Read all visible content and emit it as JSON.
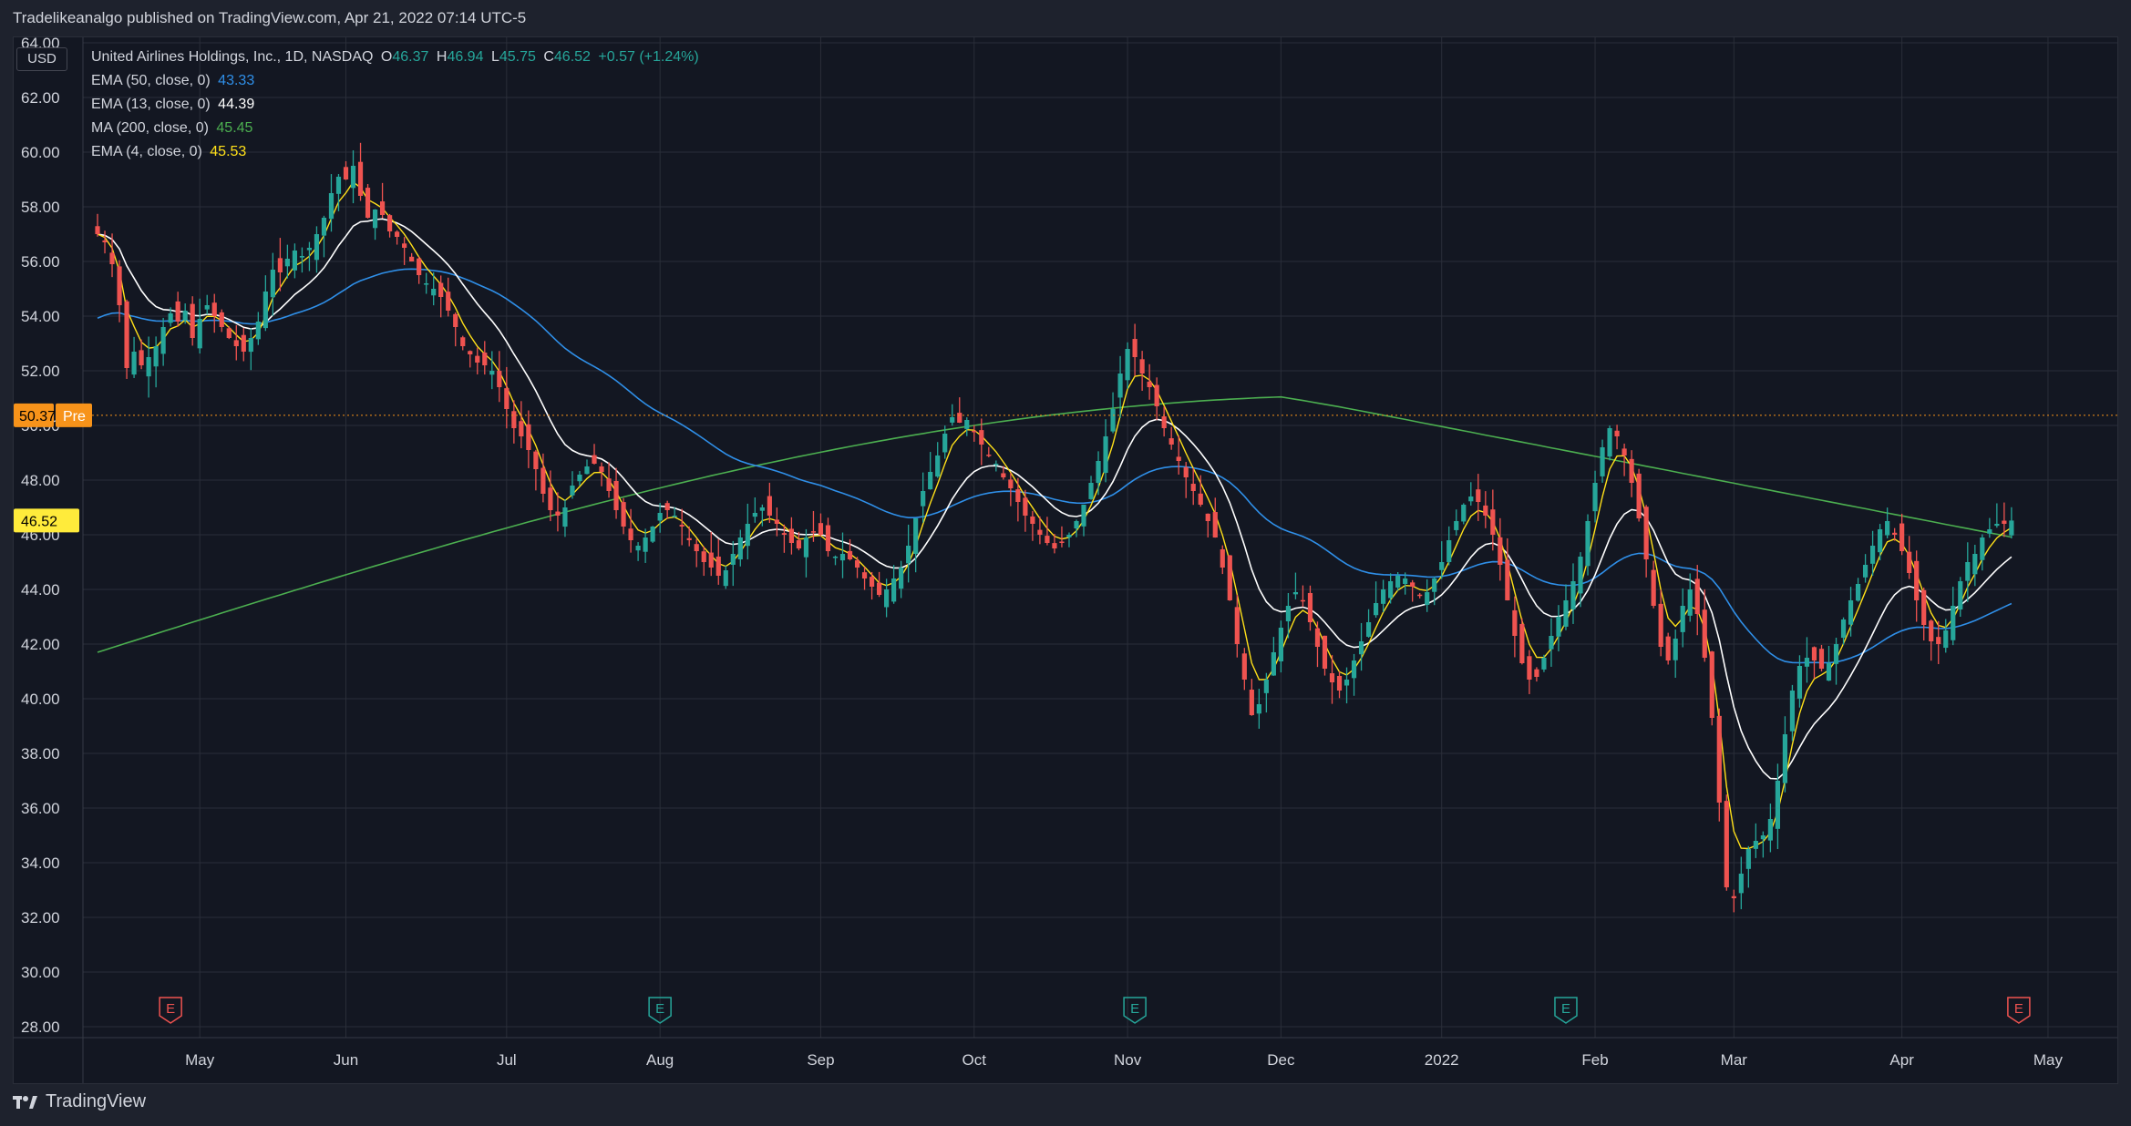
{
  "header": {
    "text": "Tradelikeanalgo published on TradingView.com, Apr 21, 2022 07:14 UTC-5"
  },
  "footer": {
    "logo_text": "TradingView"
  },
  "currency": "USD",
  "legend": {
    "symbol": "United Airlines Holdings, Inc., 1D, NASDAQ",
    "o_label": "O",
    "o_value": "46.37",
    "h_label": "H",
    "h_value": "46.94",
    "l_label": "L",
    "l_value": "45.75",
    "c_label": "C",
    "c_value": "46.52",
    "change": "+0.57 (+1.24%)",
    "indicators": [
      {
        "label": "EMA (50, close, 0)",
        "value": "43.33",
        "color": "#2f8fe8"
      },
      {
        "label": "EMA (13, close, 0)",
        "value": "44.39",
        "color": "#ffffff"
      },
      {
        "label": "MA (200, close, 0)",
        "value": "45.45",
        "color": "#4caf50"
      },
      {
        "label": "EMA (4, close, 0)",
        "value": "45.53",
        "color": "#ffe019"
      }
    ]
  },
  "badges": {
    "pre_price": "50.37",
    "pre_label": "Pre",
    "last_price": "46.52"
  },
  "colors": {
    "up": "#26a69a",
    "down": "#ef5350",
    "grid": "#2a2e39",
    "ema50": "#2f8fe8",
    "ema13": "#ffffff",
    "ma200": "#4caf50",
    "ema4": "#ffe019",
    "pre_badge": "#f7931a",
    "last_badge": "#ffeb3b"
  },
  "earnings_markers": [
    {
      "label": "E",
      "date_index": 10,
      "type": "down"
    },
    {
      "label": "E",
      "date_index": 77,
      "type": "up"
    },
    {
      "label": "E",
      "date_index": 142,
      "type": "up"
    },
    {
      "label": "E",
      "date_index": 201,
      "type": "up"
    },
    {
      "label": "E",
      "date_index": 263,
      "type": "down"
    }
  ],
  "chart_data": {
    "type": "candlestick",
    "y_ticks": [
      "64.00",
      "62.00",
      "60.00",
      "58.00",
      "56.00",
      "54.00",
      "52.00",
      "50.00",
      "48.00",
      "46.00",
      "44.00",
      "42.00",
      "40.00",
      "38.00",
      "36.00",
      "34.00",
      "32.00",
      "30.00",
      "28.00"
    ],
    "x_ticks": [
      {
        "label": "May",
        "index": 14
      },
      {
        "label": "Jun",
        "index": 34
      },
      {
        "label": "Jul",
        "index": 56
      },
      {
        "label": "Aug",
        "index": 77
      },
      {
        "label": "Sep",
        "index": 99
      },
      {
        "label": "Oct",
        "index": 120
      },
      {
        "label": "Nov",
        "index": 141
      },
      {
        "label": "Dec",
        "index": 162
      },
      {
        "label": "2022",
        "index": 184
      },
      {
        "label": "Feb",
        "index": 205
      },
      {
        "label": "Mar",
        "index": 224
      },
      {
        "label": "Apr",
        "index": 247
      },
      {
        "label": "May",
        "index": 267
      }
    ],
    "ylim": [
      27.6,
      64.2
    ],
    "x_count": 271,
    "closes": [
      57.0,
      56.7,
      55.9,
      54.4,
      52.1,
      52.7,
      52.2,
      52.5,
      52.9,
      53.6,
      54.1,
      53.8,
      54.2,
      53.2,
      53.9,
      54.4,
      54.0,
      53.6,
      53.2,
      52.9,
      52.7,
      53.2,
      53.8,
      54.9,
      55.7,
      55.6,
      56.1,
      56.4,
      56.2,
      56.5,
      57.0,
      57.6,
      58.5,
      59.1,
      59.0,
      59.5,
      58.4,
      57.6,
      57.9,
      57.7,
      57.1,
      56.9,
      56.5,
      56.0,
      55.5,
      55.2,
      55.0,
      54.7,
      54.2,
      53.6,
      52.9,
      52.6,
      52.3,
      52.2,
      52.0,
      51.4,
      50.6,
      49.9,
      49.6,
      49.1,
      48.4,
      47.5,
      46.9,
      46.7,
      47.0,
      47.8,
      48.2,
      48.5,
      48.6,
      48.3,
      47.6,
      46.9,
      46.3,
      45.8,
      45.6,
      45.9,
      46.3,
      46.8,
      46.9,
      46.7,
      46.3,
      45.8,
      45.4,
      45.0,
      44.8,
      44.5,
      44.7,
      45.3,
      45.9,
      46.4,
      46.8,
      47.0,
      46.7,
      46.4,
      46.0,
      45.7,
      45.5,
      45.9,
      46.1,
      46.0,
      45.4,
      45.2,
      45.3,
      45.1,
      44.8,
      44.4,
      44.1,
      43.8,
      44.0,
      44.4,
      44.8,
      45.6,
      46.6,
      47.6,
      48.3,
      48.9,
      49.7,
      50.3,
      50.1,
      50.2,
      49.8,
      49.3,
      48.9,
      48.6,
      48.1,
      47.7,
      47.2,
      46.7,
      46.4,
      46.0,
      45.7,
      45.5,
      45.7,
      46.0,
      46.5,
      47.1,
      47.9,
      48.7,
      49.6,
      50.6,
      51.9,
      52.8,
      52.5,
      51.9,
      51.4,
      50.7,
      49.9,
      49.3,
      48.7,
      48.1,
      47.6,
      47.1,
      46.5,
      45.9,
      44.8,
      43.6,
      42.0,
      40.7,
      39.4,
      39.8,
      40.7,
      41.7,
      42.6,
      43.4,
      43.9,
      43.6,
      42.8,
      41.9,
      41.1,
      40.6,
      40.3,
      40.7,
      41.4,
      42.1,
      42.8,
      43.5,
      44.0,
      44.3,
      44.5,
      44.4,
      44.1,
      43.8,
      43.9,
      44.4,
      45.0,
      45.8,
      46.5,
      47.1,
      47.4,
      47.2,
      46.7,
      46.0,
      44.9,
      43.6,
      42.3,
      41.3,
      40.7,
      40.8,
      41.5,
      42.3,
      43.0,
      43.6,
      44.3,
      45.2,
      46.5,
      47.9,
      49.2,
      49.9,
      49.6,
      48.9,
      47.9,
      46.6,
      45.1,
      43.4,
      41.9,
      41.4,
      42.2,
      43.4,
      44.0,
      43.1,
      41.5,
      39.3,
      36.2,
      33.1,
      32.7,
      33.6,
      34.5,
      34.8,
      35.0,
      35.6,
      37.0,
      38.7,
      40.3,
      41.2,
      41.5,
      41.4,
      41.1,
      41.3,
      42.0,
      42.9,
      43.6,
      44.2,
      44.9,
      45.6,
      46.2,
      46.5,
      46.0,
      45.4,
      44.6,
      43.6,
      42.7,
      42.1,
      42.0,
      42.5,
      43.4,
      44.3,
      45.0,
      45.3,
      45.9,
      46.2,
      46.4,
      46.4,
      46.52
    ],
    "series": [
      {
        "name": "EMA (50, close, 0)",
        "values_ref": "computed"
      },
      {
        "name": "EMA (13, close, 0)",
        "values_ref": "computed"
      },
      {
        "name": "MA (200, close, 0)",
        "values_ref": "computed"
      },
      {
        "name": "EMA (4, close, 0)",
        "values_ref": "computed"
      }
    ],
    "grid": true,
    "legend_position": "top-left"
  }
}
